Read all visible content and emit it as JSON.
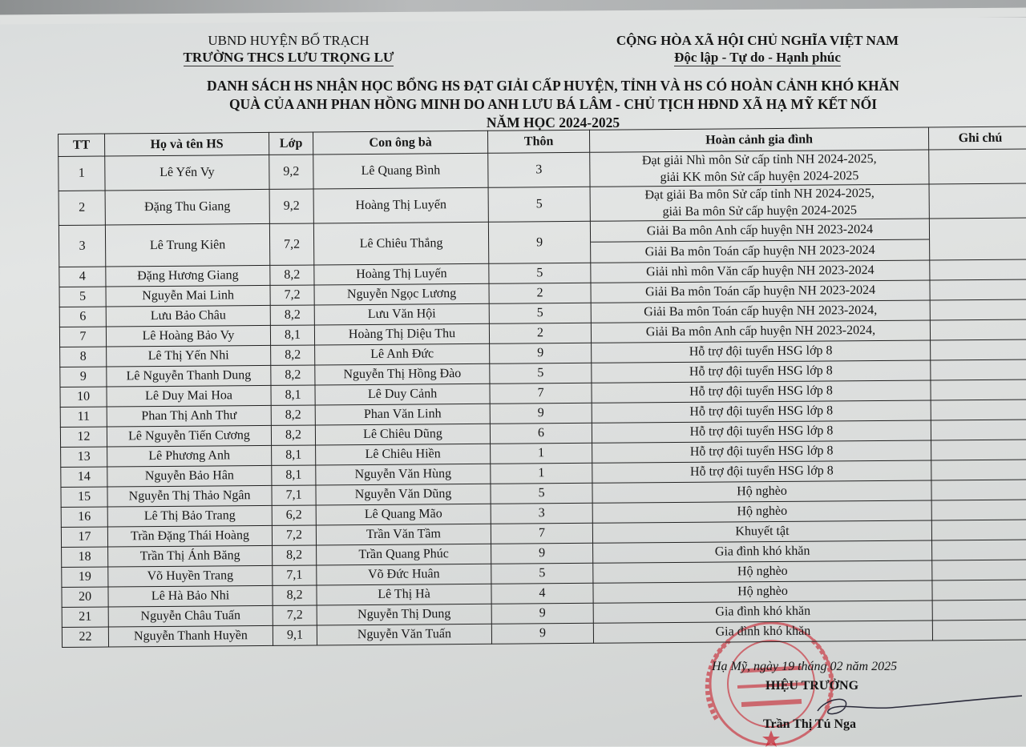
{
  "header_left": {
    "line1": "UBND HUYỆN BỐ TRẠCH",
    "line2": "TRƯỜNG THCS LƯU TRỌNG LƯ"
  },
  "header_right": {
    "line1": "CỘNG HÒA XÃ HỘI CHỦ NGHĨA VIỆT NAM",
    "line2": "Độc lập - Tự do - Hạnh phúc"
  },
  "title": {
    "line1": "DANH SÁCH HS NHẬN HỌC BỔNG HS ĐẠT GIẢI CẤP HUYỆN, TỈNH VÀ HS CÓ HOÀN CẢNH KHÓ KHĂN",
    "line2": "QUÀ CỦA ANH PHAN HỒNG MINH DO ANH LƯU BÁ LÂM - CHỦ TỊCH HĐND XÃ HẠ MỸ KẾT NỐI",
    "line3": "NĂM HỌC 2024-2025"
  },
  "table": {
    "columns": [
      "TT",
      "Họ và tên HS",
      "Lớp",
      "Con ông bà",
      "Thôn",
      "Hoàn cảnh gia đình",
      "Ghi chú"
    ],
    "rows": [
      {
        "tt": "1",
        "name": "Lê Yến Vy",
        "lop": "9,2",
        "parent": "Lê Quang Bình",
        "thon": "3",
        "hc": [
          "Đạt giải Nhì môn Sử cấp tỉnh NH 2024-2025,",
          "giải KK môn Sử cấp huyện 2024-2025"
        ],
        "note": ""
      },
      {
        "tt": "2",
        "name": "Đặng Thu Giang",
        "lop": "9,2",
        "parent": "Hoàng Thị Luyến",
        "thon": "5",
        "hc": [
          "Đạt giải Ba môn Sử cấp tỉnh NH 2024-2025,",
          "giải  Ba môn Sử cấp huyện 2024-2025"
        ],
        "note": ""
      },
      {
        "tt": "3",
        "name": "Lê Trung Kiên",
        "lop": "7,2",
        "parent": "Lê Chiêu Thắng",
        "thon": "9",
        "hc": [
          "Giải Ba môn Anh cấp huyện NH 2023-2024",
          "Giải Ba môn Toán cấp huyện NH 2023-2024"
        ],
        "note": ""
      },
      {
        "tt": "4",
        "name": "Đặng Hương Giang",
        "lop": "8,2",
        "parent": "Hoàng Thị Luyến",
        "thon": "5",
        "hc": [
          "Giải nhì môn Văn cấp huyện NH 2023-2024"
        ],
        "note": ""
      },
      {
        "tt": "5",
        "name": "Nguyễn Mai Linh",
        "lop": "7,2",
        "parent": "Nguyễn Ngọc Lương",
        "thon": "2",
        "hc": [
          "Giải Ba môn Toán cấp huyện NH 2023-2024"
        ],
        "note": ""
      },
      {
        "tt": "6",
        "name": "Lưu Bảo Châu",
        "lop": "8,2",
        "parent": "Lưu Văn Hội",
        "thon": "5",
        "hc": [
          "Giải Ba môn Toán cấp huyện NH 2023-2024,"
        ],
        "note": ""
      },
      {
        "tt": "7",
        "name": "Lê Hoàng Bảo Vy",
        "lop": "8,1",
        "parent": "Hoàng Thị Diệu Thu",
        "thon": "2",
        "hc": [
          "Giải Ba môn Anh cấp huyện NH 2023-2024,"
        ],
        "note": ""
      },
      {
        "tt": "8",
        "name": "Lê Thị Yến Nhi",
        "lop": "8,2",
        "parent": "Lê Anh Đức",
        "thon": "9",
        "hc": [
          "Hỗ trợ đội tuyển HSG lớp 8"
        ],
        "note": ""
      },
      {
        "tt": "9",
        "name": "Lê Nguyễn Thanh Dung",
        "lop": "8,2",
        "parent": "Nguyễn Thị Hồng Đào",
        "thon": "5",
        "hc": [
          "Hỗ trợ đội tuyển HSG lớp 8"
        ],
        "note": ""
      },
      {
        "tt": "10",
        "name": "Lê Duy Mai Hoa",
        "lop": "8,1",
        "parent": "Lê Duy Cảnh",
        "thon": "7",
        "hc": [
          "Hỗ trợ đội tuyển HSG lớp 8"
        ],
        "note": ""
      },
      {
        "tt": "11",
        "name": "Phan Thị Anh Thư",
        "lop": "8,2",
        "parent": "Phan Văn Linh",
        "thon": "9",
        "hc": [
          "Hỗ trợ đội tuyển HSG lớp 8"
        ],
        "note": ""
      },
      {
        "tt": "12",
        "name": "Lê Nguyễn Tiến Cương",
        "lop": "8,2",
        "parent": "Lê Chiêu Dũng",
        "thon": "6",
        "hc": [
          "Hỗ trợ đội tuyển HSG lớp 8"
        ],
        "note": ""
      },
      {
        "tt": "13",
        "name": "Lê Phương Anh",
        "lop": "8,1",
        "parent": "Lê Chiêu Hiền",
        "thon": "1",
        "hc": [
          "Hỗ trợ đội tuyển HSG lớp 8"
        ],
        "note": ""
      },
      {
        "tt": "14",
        "name": "Nguyễn Bảo Hân",
        "lop": "8,1",
        "parent": "Nguyễn Văn Hùng",
        "thon": "1",
        "hc": [
          "Hỗ trợ đội tuyển HSG lớp 8"
        ],
        "note": ""
      },
      {
        "tt": "15",
        "name": "Nguyễn Thị Thảo Ngân",
        "lop": "7,1",
        "parent": "Nguyễn Văn Dũng",
        "thon": "5",
        "hc": [
          "Hộ nghèo"
        ],
        "note": ""
      },
      {
        "tt": "16",
        "name": "Lê Thị Bảo Trang",
        "lop": "6,2",
        "parent": "Lê Quang Mão",
        "thon": "3",
        "hc": [
          "Hộ nghèo"
        ],
        "note": ""
      },
      {
        "tt": "17",
        "name": "Trần Đặng Thái Hoàng",
        "lop": "7,2",
        "parent": "Trần Văn Tầm",
        "thon": "7",
        "hc": [
          "Khuyết tật"
        ],
        "note": ""
      },
      {
        "tt": "18",
        "name": "Trần Thị Ánh Băng",
        "lop": "8,2",
        "parent": "Trần Quang Phúc",
        "thon": "9",
        "hc": [
          "Gia đình khó khăn"
        ],
        "note": ""
      },
      {
        "tt": "19",
        "name": "Võ Huyền Trang",
        "lop": "7,1",
        "parent": "Võ Đức Huân",
        "thon": "5",
        "hc": [
          "Hộ nghèo"
        ],
        "note": ""
      },
      {
        "tt": "20",
        "name": "Lê Hà Bảo Nhi",
        "lop": "8,2",
        "parent": "Lê Thị Hà",
        "thon": "4",
        "hc": [
          "Hộ nghèo"
        ],
        "note": ""
      },
      {
        "tt": "21",
        "name": "Nguyễn Châu Tuấn",
        "lop": "7,2",
        "parent": "Nguyễn Thị Dung",
        "thon": "9",
        "hc": [
          "Gia đình khó khăn"
        ],
        "note": ""
      },
      {
        "tt": "22",
        "name": "Nguyễn Thanh Huyền",
        "lop": "9,1",
        "parent": "Nguyễn Văn Tuấn",
        "thon": "9",
        "hc": [
          "Gia đình khó khăn"
        ],
        "note": ""
      }
    ]
  },
  "footer": {
    "date": "Hạ Mỹ, ngày 19 tháng 02 năm 2025",
    "role": "HIỆU TRƯỞNG",
    "signer": "Trần Thị Tú Nga"
  },
  "stamp": {
    "outer_text": "UỶ BAN NHÂN DÂN HUYỆN BỐ TRẠCH",
    "line1": "TRƯỜNG",
    "line2": "TRUNG HỌC CƠ SỞ",
    "line3": "LƯU TRỌNG LƯ",
    "color": "#c8202c"
  }
}
